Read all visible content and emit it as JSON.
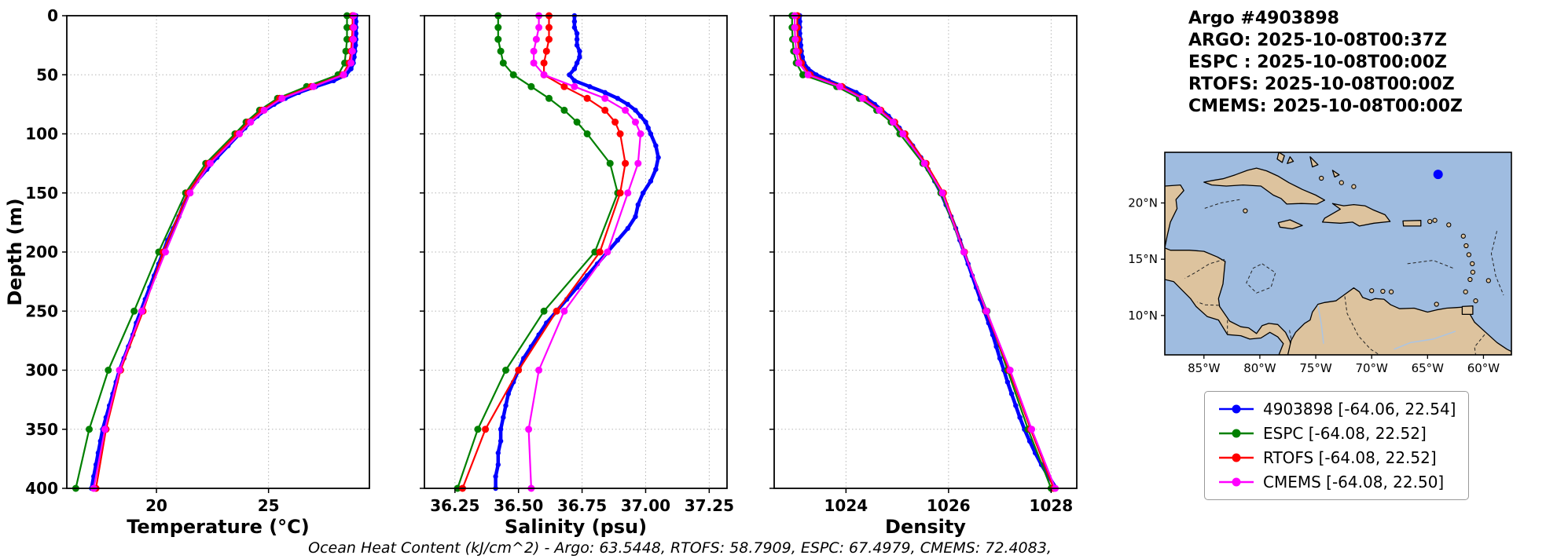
{
  "info": {
    "lines": [
      "Argo #4903898",
      "ARGO: 2025-10-08T00:37Z",
      "ESPC : 2025-10-08T00:00Z",
      "RTOFS: 2025-10-08T00:00Z",
      "CMEMS: 2025-10-08T00:00Z"
    ]
  },
  "footer": {
    "ohc_text": "Ocean Heat Content (kJ/cm^2) - Argo: 63.5448,  RTOFS: 58.7909,  ESPC: 67.4979,  CMEMS: 72.4083,"
  },
  "legend": {
    "items": [
      {
        "label": "4903898 [-64.06, 22.54]",
        "color": "#0000ff"
      },
      {
        "label": "ESPC [-64.08, 22.52]",
        "color": "#008000"
      },
      {
        "label": "RTOFS [-64.08, 22.52]",
        "color": "#ff0000"
      },
      {
        "label": "CMEMS [-64.08, 22.50]",
        "color": "#ff00ff"
      }
    ]
  },
  "map": {
    "ocean_color": "#9fbce0",
    "land_color": "#ddc39e",
    "extent": {
      "lon_min": -88.5,
      "lon_max": -57.5,
      "lat_min": 6.5,
      "lat_max": 24.5
    },
    "lon_ticks": [
      {
        "v": -85,
        "label": "85°W"
      },
      {
        "v": -80,
        "label": "80°W"
      },
      {
        "v": -75,
        "label": "75°W"
      },
      {
        "v": -70,
        "label": "70°W"
      },
      {
        "v": -65,
        "label": "65°W"
      },
      {
        "v": -60,
        "label": "60°W"
      }
    ],
    "lat_ticks": [
      {
        "v": 20,
        "label": "20°N"
      },
      {
        "v": 15,
        "label": "15°N"
      },
      {
        "v": 10,
        "label": "10°N"
      }
    ],
    "marker": {
      "lon": -64.06,
      "lat": 22.54,
      "color": "#0000ff"
    }
  },
  "chart_data": [
    {
      "type": "line",
      "name": "temperature",
      "xlabel": "Temperature (°C)",
      "ylabel": "Depth (m)",
      "xlim": [
        16.0,
        29.5
      ],
      "xticks": [
        {
          "v": 20,
          "label": "20"
        },
        {
          "v": 25,
          "label": "25"
        }
      ],
      "ylim": [
        0,
        400
      ],
      "yticks": [
        {
          "v": 0,
          "label": "0"
        },
        {
          "v": 50,
          "label": "50"
        },
        {
          "v": 100,
          "label": "100"
        },
        {
          "v": 150,
          "label": "150"
        },
        {
          "v": 200,
          "label": "200"
        },
        {
          "v": 250,
          "label": "250"
        },
        {
          "v": 300,
          "label": "300"
        },
        {
          "v": 350,
          "label": "350"
        },
        {
          "v": 400,
          "label": "400"
        }
      ],
      "grid": true,
      "series": [
        {
          "name": "4903898",
          "color": "#0000ff",
          "lw": 4.5,
          "ms": 3.2,
          "depth": [
            0,
            5,
            10,
            15,
            20,
            25,
            30,
            35,
            40,
            45,
            50,
            55,
            60,
            65,
            70,
            75,
            80,
            85,
            90,
            95,
            100,
            110,
            120,
            130,
            140,
            150,
            160,
            170,
            180,
            190,
            200,
            210,
            220,
            230,
            240,
            250,
            260,
            270,
            280,
            290,
            300,
            310,
            320,
            330,
            340,
            350,
            360,
            370,
            380,
            390,
            400
          ],
          "values": [
            28.9,
            28.9,
            28.9,
            28.9,
            28.9,
            28.88,
            28.85,
            28.82,
            28.78,
            28.68,
            28.45,
            27.9,
            27.1,
            26.35,
            25.75,
            25.25,
            24.85,
            24.5,
            24.2,
            23.95,
            23.7,
            23.2,
            22.7,
            22.25,
            21.8,
            21.45,
            21.2,
            21.0,
            20.75,
            20.5,
            20.3,
            20.1,
            19.9,
            19.7,
            19.5,
            19.3,
            19.1,
            18.95,
            18.75,
            18.55,
            18.35,
            18.2,
            18.05,
            17.9,
            17.75,
            17.6,
            17.5,
            17.4,
            17.3,
            17.2,
            17.1
          ]
        },
        {
          "name": "ESPC",
          "color": "#008000",
          "lw": 2.2,
          "ms": 4.5,
          "depth": [
            0,
            10,
            20,
            30,
            40,
            50,
            60,
            70,
            80,
            90,
            100,
            125,
            150,
            200,
            250,
            300,
            350,
            400
          ],
          "values": [
            28.5,
            28.5,
            28.5,
            28.45,
            28.4,
            28.1,
            26.7,
            25.4,
            24.6,
            24.0,
            23.5,
            22.2,
            21.3,
            20.1,
            19.0,
            17.85,
            17.0,
            16.4
          ]
        },
        {
          "name": "RTOFS",
          "color": "#ff0000",
          "lw": 2.2,
          "ms": 4.5,
          "depth": [
            0,
            10,
            20,
            30,
            40,
            50,
            60,
            70,
            80,
            90,
            100,
            125,
            150,
            200,
            250,
            300,
            350,
            400
          ],
          "values": [
            28.75,
            28.75,
            28.72,
            28.68,
            28.6,
            28.3,
            26.9,
            25.5,
            24.7,
            24.1,
            23.6,
            22.3,
            21.4,
            20.3,
            19.4,
            18.4,
            17.75,
            17.3
          ]
        },
        {
          "name": "CMEMS",
          "color": "#ff00ff",
          "lw": 2.2,
          "ms": 4.5,
          "depth": [
            0,
            10,
            20,
            30,
            40,
            50,
            60,
            70,
            80,
            90,
            100,
            125,
            150,
            200,
            250,
            300,
            350,
            400
          ],
          "values": [
            28.8,
            28.8,
            28.78,
            28.74,
            28.68,
            28.35,
            27.0,
            25.6,
            24.8,
            24.2,
            23.7,
            22.4,
            21.5,
            20.4,
            19.35,
            18.35,
            17.7,
            17.2
          ]
        }
      ]
    },
    {
      "type": "line",
      "name": "salinity",
      "xlabel": "Salinity (psu)",
      "ylabel": "Depth (m)",
      "xlim": [
        36.13,
        37.32
      ],
      "xticks": [
        {
          "v": 36.25,
          "label": "36.25"
        },
        {
          "v": 36.5,
          "label": "36.50"
        },
        {
          "v": 36.75,
          "label": "36.75"
        },
        {
          "v": 37.0,
          "label": "37.00"
        },
        {
          "v": 37.25,
          "label": "37.25"
        }
      ],
      "ylim": [
        0,
        400
      ],
      "yticks": [
        {
          "v": 0,
          "label": "0"
        },
        {
          "v": 50,
          "label": "50"
        },
        {
          "v": 100,
          "label": "100"
        },
        {
          "v": 150,
          "label": "150"
        },
        {
          "v": 200,
          "label": "200"
        },
        {
          "v": 250,
          "label": "250"
        },
        {
          "v": 300,
          "label": "300"
        },
        {
          "v": 350,
          "label": "350"
        },
        {
          "v": 400,
          "label": "400"
        }
      ],
      "grid": true,
      "series": [
        {
          "name": "4903898",
          "color": "#0000ff",
          "lw": 4.5,
          "ms": 3.2,
          "depth": [
            0,
            5,
            10,
            15,
            20,
            25,
            30,
            35,
            40,
            45,
            50,
            55,
            60,
            65,
            70,
            75,
            80,
            85,
            90,
            95,
            100,
            110,
            120,
            130,
            140,
            150,
            160,
            170,
            180,
            190,
            200,
            210,
            220,
            230,
            240,
            250,
            260,
            270,
            280,
            290,
            300,
            310,
            320,
            330,
            340,
            350,
            360,
            370,
            380,
            390,
            400
          ],
          "values": [
            36.72,
            36.72,
            36.72,
            36.73,
            36.73,
            36.73,
            36.74,
            36.74,
            36.73,
            36.72,
            36.7,
            36.72,
            36.78,
            36.84,
            36.89,
            36.93,
            36.96,
            36.98,
            37.0,
            37.01,
            37.02,
            37.04,
            37.05,
            37.04,
            37.02,
            36.99,
            36.97,
            36.96,
            36.93,
            36.89,
            36.85,
            36.81,
            36.77,
            36.73,
            36.69,
            36.65,
            36.61,
            36.58,
            36.55,
            36.52,
            36.5,
            36.48,
            36.46,
            36.45,
            36.44,
            36.43,
            36.43,
            36.42,
            36.42,
            36.41,
            36.41
          ]
        },
        {
          "name": "ESPC",
          "color": "#008000",
          "lw": 2.2,
          "ms": 4.5,
          "depth": [
            0,
            10,
            20,
            30,
            40,
            50,
            60,
            70,
            80,
            90,
            100,
            125,
            150,
            200,
            250,
            300,
            350,
            400
          ],
          "values": [
            36.42,
            36.42,
            36.42,
            36.43,
            36.44,
            36.48,
            36.55,
            36.62,
            36.68,
            36.73,
            36.77,
            36.86,
            36.89,
            36.8,
            36.6,
            36.45,
            36.34,
            36.26
          ]
        },
        {
          "name": "RTOFS",
          "color": "#ff0000",
          "lw": 2.2,
          "ms": 4.5,
          "depth": [
            0,
            10,
            20,
            30,
            40,
            50,
            60,
            70,
            80,
            90,
            100,
            125,
            150,
            200,
            250,
            300,
            350,
            400
          ],
          "values": [
            36.62,
            36.62,
            36.62,
            36.61,
            36.6,
            36.6,
            36.68,
            36.77,
            36.84,
            36.88,
            36.9,
            36.92,
            36.9,
            36.82,
            36.65,
            36.5,
            36.37,
            36.28
          ]
        },
        {
          "name": "CMEMS",
          "color": "#ff00ff",
          "lw": 2.2,
          "ms": 4.5,
          "depth": [
            0,
            10,
            20,
            30,
            40,
            50,
            60,
            70,
            80,
            90,
            100,
            125,
            150,
            200,
            250,
            300,
            350,
            400
          ],
          "values": [
            36.58,
            36.58,
            36.57,
            36.56,
            36.56,
            36.6,
            36.72,
            36.84,
            36.92,
            36.96,
            36.98,
            36.97,
            36.93,
            36.85,
            36.68,
            36.58,
            36.54,
            36.55
          ]
        }
      ]
    },
    {
      "type": "line",
      "name": "density",
      "xlabel": "Density",
      "ylabel": "Depth (m)",
      "xlim": [
        1022.6,
        1028.5
      ],
      "xticks": [
        {
          "v": 1024,
          "label": "1024"
        },
        {
          "v": 1026,
          "label": "1026"
        },
        {
          "v": 1028,
          "label": "1028"
        }
      ],
      "ylim": [
        0,
        400
      ],
      "yticks": [
        {
          "v": 0,
          "label": "0"
        },
        {
          "v": 50,
          "label": "50"
        },
        {
          "v": 100,
          "label": "100"
        },
        {
          "v": 150,
          "label": "150"
        },
        {
          "v": 200,
          "label": "200"
        },
        {
          "v": 250,
          "label": "250"
        },
        {
          "v": 300,
          "label": "300"
        },
        {
          "v": 350,
          "label": "350"
        },
        {
          "v": 400,
          "label": "400"
        }
      ],
      "grid": true,
      "series": [
        {
          "name": "4903898",
          "color": "#0000ff",
          "lw": 4.5,
          "ms": 3.2,
          "depth": [
            0,
            5,
            10,
            15,
            20,
            25,
            30,
            35,
            40,
            45,
            50,
            55,
            60,
            65,
            70,
            75,
            80,
            85,
            90,
            95,
            100,
            110,
            120,
            130,
            140,
            150,
            160,
            170,
            180,
            190,
            200,
            210,
            220,
            230,
            240,
            250,
            260,
            270,
            280,
            290,
            300,
            310,
            320,
            330,
            340,
            350,
            360,
            370,
            380,
            390,
            400
          ],
          "values": [
            1023.1,
            1023.1,
            1023.1,
            1023.1,
            1023.11,
            1023.12,
            1023.13,
            1023.15,
            1023.18,
            1023.26,
            1023.42,
            1023.66,
            1023.95,
            1024.2,
            1024.4,
            1024.56,
            1024.7,
            1024.83,
            1024.94,
            1025.04,
            1025.13,
            1025.3,
            1025.46,
            1025.6,
            1025.73,
            1025.85,
            1025.95,
            1026.05,
            1026.14,
            1026.22,
            1026.3,
            1026.38,
            1026.46,
            1026.54,
            1026.62,
            1026.7,
            1026.78,
            1026.86,
            1026.93,
            1027.0,
            1027.08,
            1027.15,
            1027.23,
            1027.31,
            1027.39,
            1027.48,
            1027.58,
            1027.69,
            1027.81,
            1027.95,
            1028.1
          ]
        },
        {
          "name": "ESPC",
          "color": "#008000",
          "lw": 2.2,
          "ms": 4.5,
          "depth": [
            0,
            10,
            20,
            30,
            40,
            50,
            60,
            70,
            80,
            90,
            100,
            125,
            150,
            200,
            250,
            300,
            350,
            400
          ],
          "values": [
            1022.95,
            1022.95,
            1022.96,
            1022.98,
            1023.03,
            1023.16,
            1023.82,
            1024.26,
            1024.6,
            1024.88,
            1025.05,
            1025.5,
            1025.85,
            1026.3,
            1026.75,
            1027.15,
            1027.55,
            1028.0
          ]
        },
        {
          "name": "RTOFS",
          "color": "#ff0000",
          "lw": 2.2,
          "ms": 4.5,
          "depth": [
            0,
            10,
            20,
            30,
            40,
            50,
            60,
            70,
            80,
            90,
            100,
            125,
            150,
            200,
            250,
            300,
            350,
            400
          ],
          "values": [
            1023.05,
            1023.05,
            1023.06,
            1023.08,
            1023.13,
            1023.3,
            1023.92,
            1024.35,
            1024.68,
            1024.95,
            1025.15,
            1025.56,
            1025.9,
            1026.31,
            1026.73,
            1027.18,
            1027.6,
            1028.05
          ]
        },
        {
          "name": "CMEMS",
          "color": "#ff00ff",
          "lw": 2.2,
          "ms": 4.5,
          "depth": [
            0,
            10,
            20,
            30,
            40,
            50,
            60,
            70,
            80,
            90,
            100,
            125,
            150,
            200,
            250,
            300,
            350,
            400
          ],
          "values": [
            1023.0,
            1023.0,
            1023.01,
            1023.03,
            1023.08,
            1023.26,
            1023.88,
            1024.32,
            1024.65,
            1024.92,
            1025.11,
            1025.53,
            1025.88,
            1026.3,
            1026.74,
            1027.2,
            1027.62,
            1028.08
          ]
        }
      ]
    }
  ]
}
